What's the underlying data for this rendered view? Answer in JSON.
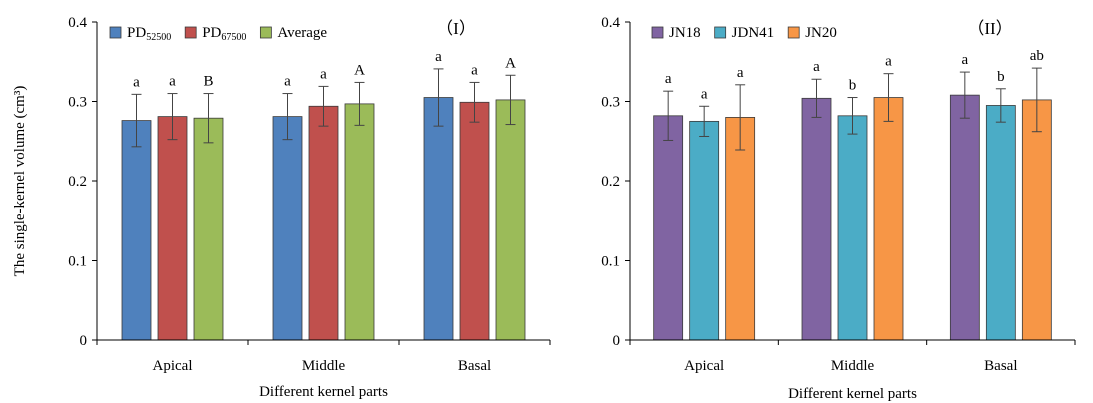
{
  "chart_data": [
    {
      "type": "bar",
      "panel_label": "（I）",
      "categories": [
        "Apical",
        "Middle",
        "Basal"
      ],
      "xlabel": "Different kernel parts",
      "ylabel": "The single-kernel volume (cm³)",
      "ylim": [
        0,
        0.4
      ],
      "yticks": [
        "0",
        "0.1",
        "0.2",
        "0.3",
        "0.4"
      ],
      "grid": false,
      "legend_position": "top-left",
      "series": [
        {
          "name": "PD",
          "name_sub": "52500",
          "color": "#4F81BD",
          "values": [
            0.276,
            0.281,
            0.305
          ],
          "errors": [
            0.033,
            0.029,
            0.036
          ],
          "labels": [
            "a",
            "a",
            "a"
          ]
        },
        {
          "name": "PD",
          "name_sub": "67500",
          "color": "#C0504D",
          "values": [
            0.281,
            0.294,
            0.299
          ],
          "errors": [
            0.029,
            0.025,
            0.025
          ],
          "labels": [
            "a",
            "a",
            "a"
          ]
        },
        {
          "name": "Average",
          "name_sub": "",
          "color": "#9BBB59",
          "values": [
            0.279,
            0.297,
            0.302
          ],
          "errors": [
            0.031,
            0.027,
            0.031
          ],
          "labels": [
            "B",
            "A",
            "A"
          ]
        }
      ]
    },
    {
      "type": "bar",
      "panel_label": "（II）",
      "categories": [
        "Apical",
        "Middle",
        "Basal"
      ],
      "xlabel": "Different kernel parts",
      "ylabel": "",
      "ylim": [
        0,
        0.4
      ],
      "yticks": [
        "0",
        "0.1",
        "0.2",
        "0.3",
        "0.4"
      ],
      "grid": false,
      "legend_position": "top-left",
      "series": [
        {
          "name": "JN18",
          "name_sub": "",
          "color": "#8064A2",
          "values": [
            0.282,
            0.304,
            0.308
          ],
          "errors": [
            0.031,
            0.024,
            0.029
          ],
          "labels": [
            "a",
            "a",
            "a"
          ]
        },
        {
          "name": "JDN41",
          "name_sub": "",
          "color": "#4BACC6",
          "values": [
            0.275,
            0.282,
            0.295
          ],
          "errors": [
            0.019,
            0.023,
            0.021
          ],
          "labels": [
            "a",
            "b",
            "b"
          ]
        },
        {
          "name": "JN20",
          "name_sub": "",
          "color": "#F79646",
          "values": [
            0.28,
            0.305,
            0.302
          ],
          "errors": [
            0.041,
            0.03,
            0.04
          ],
          "labels": [
            "a",
            "a",
            "ab"
          ]
        }
      ]
    }
  ]
}
